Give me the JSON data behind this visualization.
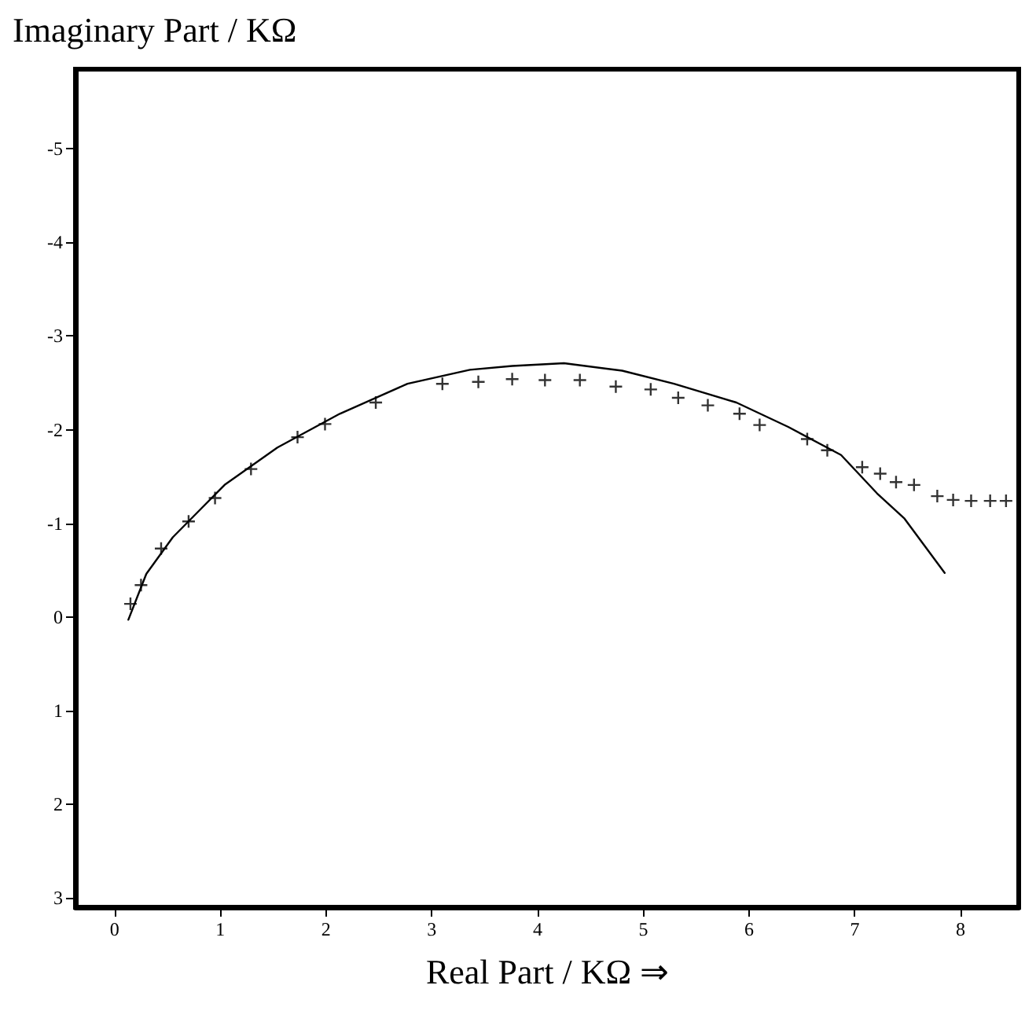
{
  "chart_data": {
    "type": "scatter",
    "xlabel": "Real Part / KΩ ⇒",
    "ylabel": "Imaginary Part / KΩ",
    "xlim": [
      -0.37,
      8.55
    ],
    "xticks": [
      0,
      1,
      2,
      3,
      4,
      5,
      6,
      7,
      8
    ],
    "ylim": [
      3.1,
      -5.85
    ],
    "yticks": [
      -5,
      -4,
      -3,
      -2,
      -1,
      0,
      1,
      2,
      3
    ],
    "grid": false,
    "series": [
      {
        "marker": "cross",
        "color": "#000000",
        "x": [
          0.15,
          0.25,
          0.44,
          0.7,
          0.95,
          1.29,
          1.73,
          1.99,
          2.47,
          3.1,
          3.44,
          3.76,
          4.07,
          4.4,
          4.74,
          5.07,
          5.33,
          5.61,
          5.91,
          6.1,
          6.55,
          6.74,
          7.07,
          7.24,
          7.39,
          7.56,
          7.78,
          7.93,
          8.1,
          8.28,
          8.43
        ],
        "values": [
          -0.14,
          -0.34,
          -0.73,
          -1.02,
          -1.27,
          -1.58,
          -1.92,
          -2.06,
          -2.29,
          -2.49,
          -2.51,
          -2.54,
          -2.53,
          -2.53,
          -2.46,
          -2.43,
          -2.34,
          -2.26,
          -2.17,
          -2.05,
          -1.9,
          -1.78,
          -1.6,
          -1.53,
          -1.44,
          -1.41,
          -1.29,
          -1.25,
          -1.24,
          -1.24,
          -1.24
        ]
      },
      {
        "type": "line",
        "marker": "none",
        "line_style": "solid",
        "color": "#000000",
        "x": [
          0.13,
          0.3,
          0.55,
          1.04,
          1.54,
          2.13,
          2.77,
          3.36,
          3.76,
          4.25,
          4.8,
          5.29,
          5.88,
          6.37,
          6.87,
          7.21,
          7.47,
          7.85
        ],
        "values": [
          0.03,
          -0.46,
          -0.85,
          -1.41,
          -1.81,
          -2.17,
          -2.49,
          -2.64,
          -2.68,
          -2.71,
          -2.63,
          -2.49,
          -2.29,
          -2.03,
          -1.73,
          -1.32,
          -1.05,
          -0.47
        ]
      }
    ]
  }
}
